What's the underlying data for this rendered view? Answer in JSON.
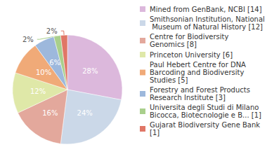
{
  "chart_data": {
    "type": "pie",
    "categories": [
      "Mined from GenBank, NCBI [14]",
      "Smithsonian Institution, National Museum of Natural History [12]",
      "Centre for Biodiversity Genomics [8]",
      "Princeton University [6]",
      "Paul Hebert Centre for DNA Barcoding and Biodiversity Studies [5]",
      "Forestry and Forest Products Research Institute [3]",
      "Universita degli Studi di Milano Bicocca, Biotecnologie e B... [1]",
      "Gujarat Biodiversity Gene Bank [1]"
    ],
    "values": [
      28,
      24,
      16,
      12,
      10,
      6,
      2,
      2
    ],
    "value_labels": [
      "28%",
      "24%",
      "16%",
      "12%",
      "10%",
      "6%",
      "2%",
      "2%"
    ],
    "colors": [
      "#dcb8dc",
      "#cbd8e8",
      "#e3a89c",
      "#dfe8a8",
      "#f0aa78",
      "#9db8dc",
      "#a9cf8c",
      "#e07666"
    ],
    "data_labels": true,
    "legend": "right"
  }
}
